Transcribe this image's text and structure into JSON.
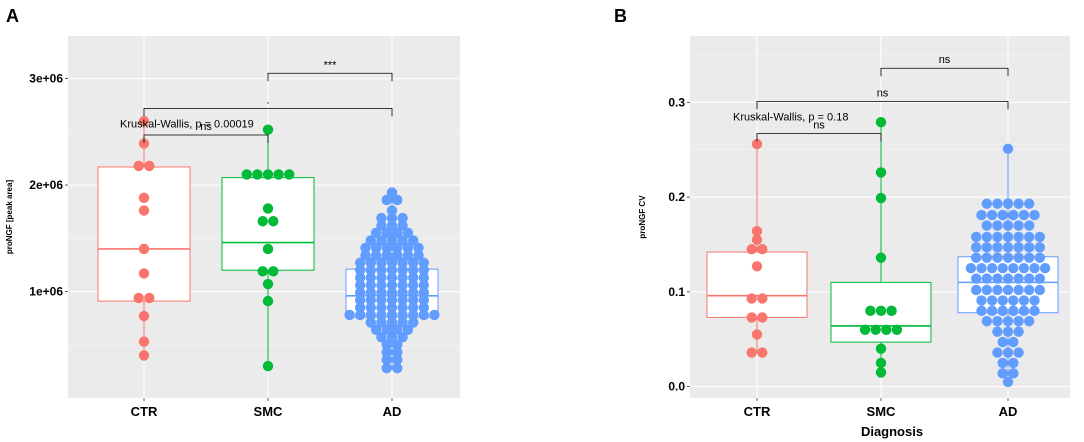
{
  "chart_data": [
    {
      "panel": "A",
      "type": "box+dotplot",
      "ylabel": "proNGF [peak area]",
      "xlabel": "",
      "categories": [
        "CTR",
        "SMC",
        "AD"
      ],
      "colors": {
        "CTR": "#F8766D",
        "SMC": "#00BA38",
        "AD": "#619CFF"
      },
      "ylim": [
        0,
        3400000
      ],
      "yticks": [
        1000000,
        2000000,
        3000000
      ],
      "ytick_labels": [
        "1e+06",
        "2e+06",
        "3e+06"
      ],
      "boxes": {
        "CTR": {
          "q1": 910000,
          "median": 1400000,
          "q3": 2170000,
          "whisker_low": 400000,
          "whisker_high": 2600000
        },
        "SMC": {
          "q1": 1200000,
          "median": 1460000,
          "q3": 2070000,
          "whisker_low": 300000,
          "whisker_high": 2520000
        },
        "AD": {
          "q1": 760000,
          "median": 960000,
          "q3": 1210000,
          "whisker_low": 270000,
          "whisker_high": 1930000
        }
      },
      "points": {
        "CTR": [
          2600000,
          2390000,
          2180000,
          2180000,
          1880000,
          1760000,
          1400000,
          1170000,
          940000,
          940000,
          770000,
          530000,
          400000
        ],
        "SMC": [
          2520000,
          2100000,
          2100000,
          2100000,
          2100000,
          2100000,
          1780000,
          1660000,
          1660000,
          1400000,
          1190000,
          1190000,
          1070000,
          910000,
          300000
        ],
        "AD": [
          1930000,
          1860000,
          1860000,
          1760000,
          1690000,
          1690000,
          1690000,
          1620000,
          1620000,
          1620000,
          1550000,
          1550000,
          1550000,
          1550000,
          1480000,
          1480000,
          1480000,
          1480000,
          1480000,
          1410000,
          1410000,
          1410000,
          1410000,
          1410000,
          1410000,
          1340000,
          1340000,
          1340000,
          1340000,
          1340000,
          1340000,
          1270000,
          1270000,
          1270000,
          1270000,
          1270000,
          1270000,
          1270000,
          1200000,
          1200000,
          1200000,
          1200000,
          1200000,
          1200000,
          1200000,
          1130000,
          1130000,
          1130000,
          1130000,
          1130000,
          1130000,
          1130000,
          1060000,
          1060000,
          1060000,
          1060000,
          1060000,
          1060000,
          1060000,
          990000,
          990000,
          990000,
          990000,
          990000,
          990000,
          990000,
          920000,
          920000,
          920000,
          920000,
          920000,
          920000,
          920000,
          850000,
          850000,
          850000,
          850000,
          850000,
          850000,
          850000,
          780000,
          780000,
          780000,
          780000,
          780000,
          780000,
          780000,
          780000,
          780000,
          710000,
          710000,
          710000,
          710000,
          710000,
          640000,
          640000,
          640000,
          640000,
          570000,
          570000,
          570000,
          500000,
          500000,
          430000,
          430000,
          360000,
          360000,
          280000,
          280000
        ]
      },
      "annotations": [
        {
          "text": "Kruskal-Wallis, p = 0.00019",
          "x_category": "CTR",
          "y": 2540000
        }
      ],
      "comparisons": [
        {
          "from": "SMC",
          "to": "AD",
          "label": "***",
          "y": 3050000
        },
        {
          "from": "CTR",
          "to": "AD",
          "label": ".",
          "y": 2720000
        },
        {
          "from": "CTR",
          "to": "SMC",
          "label": "ns",
          "y": 2470000
        }
      ]
    },
    {
      "panel": "B",
      "type": "box+dotplot",
      "ylabel": "proNGF CV",
      "xlabel": "Diagnosis",
      "categories": [
        "CTR",
        "SMC",
        "AD"
      ],
      "colors": {
        "CTR": "#F8766D",
        "SMC": "#00BA38",
        "AD": "#619CFF"
      },
      "ylim": [
        -0.012,
        0.37
      ],
      "yticks": [
        0.0,
        0.1,
        0.2,
        0.3
      ],
      "ytick_labels": [
        "0.0",
        "0.1",
        "0.2",
        "0.3"
      ],
      "boxes": {
        "CTR": {
          "q1": 0.073,
          "median": 0.096,
          "q3": 0.142,
          "whisker_low": 0.036,
          "whisker_high": 0.256
        },
        "SMC": {
          "q1": 0.047,
          "median": 0.064,
          "q3": 0.11,
          "whisker_low": 0.015,
          "whisker_high": 0.279
        },
        "AD": {
          "q1": 0.078,
          "median": 0.11,
          "q3": 0.137,
          "whisker_low": 0.005,
          "whisker_high": 0.251
        }
      },
      "points": {
        "CTR": [
          0.256,
          0.164,
          0.155,
          0.145,
          0.145,
          0.127,
          0.093,
          0.093,
          0.073,
          0.073,
          0.055,
          0.036,
          0.036
        ],
        "SMC": [
          0.279,
          0.226,
          0.199,
          0.136,
          0.08,
          0.08,
          0.08,
          0.06,
          0.06,
          0.06,
          0.06,
          0.04,
          0.025,
          0.015
        ],
        "AD": [
          0.251,
          0.193,
          0.193,
          0.193,
          0.193,
          0.193,
          0.181,
          0.181,
          0.181,
          0.181,
          0.181,
          0.181,
          0.17,
          0.17,
          0.17,
          0.17,
          0.17,
          0.158,
          0.158,
          0.158,
          0.158,
          0.158,
          0.158,
          0.158,
          0.147,
          0.147,
          0.147,
          0.147,
          0.147,
          0.147,
          0.147,
          0.136,
          0.136,
          0.136,
          0.136,
          0.136,
          0.136,
          0.136,
          0.125,
          0.125,
          0.125,
          0.125,
          0.125,
          0.125,
          0.125,
          0.125,
          0.114,
          0.114,
          0.114,
          0.114,
          0.114,
          0.114,
          0.114,
          0.102,
          0.102,
          0.102,
          0.102,
          0.102,
          0.102,
          0.102,
          0.091,
          0.091,
          0.091,
          0.091,
          0.091,
          0.091,
          0.08,
          0.08,
          0.08,
          0.08,
          0.08,
          0.08,
          0.069,
          0.069,
          0.069,
          0.069,
          0.069,
          0.058,
          0.058,
          0.058,
          0.047,
          0.047,
          0.036,
          0.036,
          0.036,
          0.025,
          0.025,
          0.014,
          0.014,
          0.005
        ]
      },
      "annotations": [
        {
          "text": "Kruskal-Wallis, p = 0.18",
          "x_category": "CTR",
          "y": 0.281
        }
      ],
      "comparisons": [
        {
          "from": "SMC",
          "to": "AD",
          "label": "ns",
          "y": 0.336
        },
        {
          "from": "CTR",
          "to": "AD",
          "label": "ns",
          "y": 0.301
        },
        {
          "from": "CTR",
          "to": "SMC",
          "label": "ns",
          "y": 0.267
        }
      ]
    }
  ]
}
